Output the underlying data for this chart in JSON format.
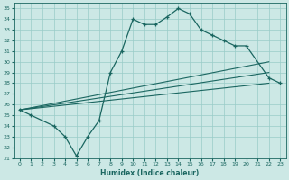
{
  "xlabel": "Humidex (Indice chaleur)",
  "bg_color": "#cce8e5",
  "grid_color": "#99ccc8",
  "line_color": "#1a6660",
  "xlim": [
    -0.5,
    23.5
  ],
  "ylim": [
    21,
    35.5
  ],
  "xticks": [
    0,
    1,
    2,
    3,
    4,
    5,
    6,
    7,
    8,
    9,
    10,
    11,
    12,
    13,
    14,
    15,
    16,
    17,
    18,
    19,
    20,
    21,
    22,
    23
  ],
  "yticks": [
    21,
    22,
    23,
    24,
    25,
    26,
    27,
    28,
    29,
    30,
    31,
    32,
    33,
    34,
    35
  ],
  "curve_x": [
    0,
    1,
    3,
    4,
    5,
    6,
    7,
    8,
    9,
    10,
    11,
    12,
    13,
    14,
    15,
    16,
    17,
    18,
    19,
    20,
    22,
    23
  ],
  "curve_y": [
    25.5,
    25.0,
    24.0,
    23.0,
    21.2,
    23.0,
    24.5,
    29.0,
    31.0,
    34.0,
    33.5,
    33.5,
    34.2,
    35.0,
    34.5,
    33.0,
    32.5,
    32.0,
    31.5,
    31.5,
    28.5,
    28.0
  ],
  "line1_x": [
    0,
    22
  ],
  "line1_y": [
    25.5,
    30.0
  ],
  "line2_x": [
    0,
    22
  ],
  "line2_y": [
    25.5,
    29.0
  ],
  "line3_x": [
    0,
    22
  ],
  "line3_y": [
    25.5,
    28.0
  ]
}
